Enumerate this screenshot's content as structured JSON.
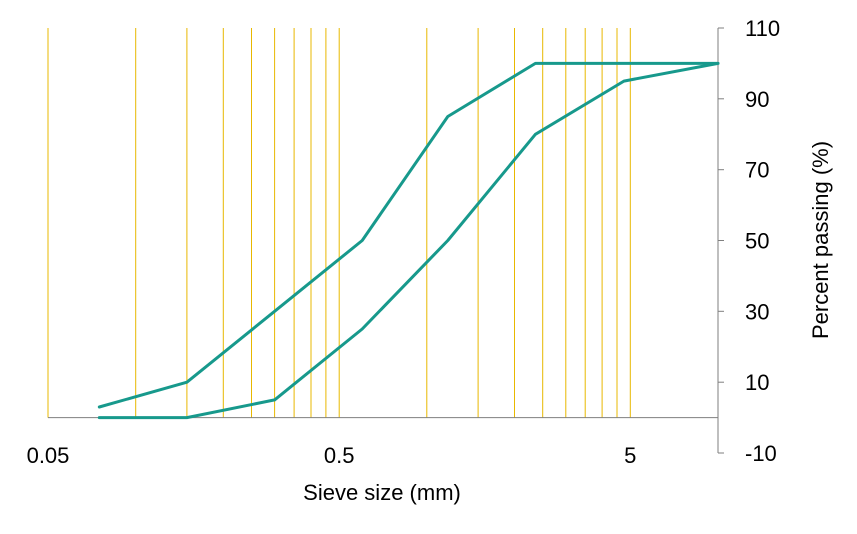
{
  "chart_data": {
    "type": "line",
    "xlabel": "Sieve size (mm)",
    "ylabel": "Percent passing (%)",
    "x_scale": "log",
    "xlim": [
      0.05,
      10
    ],
    "ylim": [
      -10,
      110
    ],
    "x_ticks": [
      0.05,
      0.5,
      5
    ],
    "x_tick_labels": [
      "0.05",
      "0.5",
      "5"
    ],
    "y_ticks": [
      110,
      90,
      70,
      50,
      30,
      10,
      -10
    ],
    "y_tick_labels": [
      "110",
      "90",
      "70",
      "50",
      "30",
      "10",
      "-10"
    ],
    "vertical_gridlines": [
      0.05,
      0.1,
      0.15,
      0.2,
      0.25,
      0.3,
      0.35,
      0.4,
      0.45,
      0.5,
      1,
      1.5,
      2,
      2.5,
      3,
      3.5,
      4,
      4.5,
      5
    ],
    "grid_color": "#E8B800",
    "line_color": "#17998C",
    "series": [
      {
        "x": [
          0.075,
          0.15,
          0.3,
          0.6,
          1.18,
          2.36,
          10
        ],
        "values": [
          3,
          10,
          30,
          50,
          85,
          100,
          100
        ]
      },
      {
        "x": [
          0.075,
          0.15,
          0.3,
          0.6,
          1.18,
          2.36,
          4.75,
          10
        ],
        "values": [
          0,
          0,
          5,
          25,
          50,
          80,
          95,
          100
        ]
      }
    ]
  }
}
